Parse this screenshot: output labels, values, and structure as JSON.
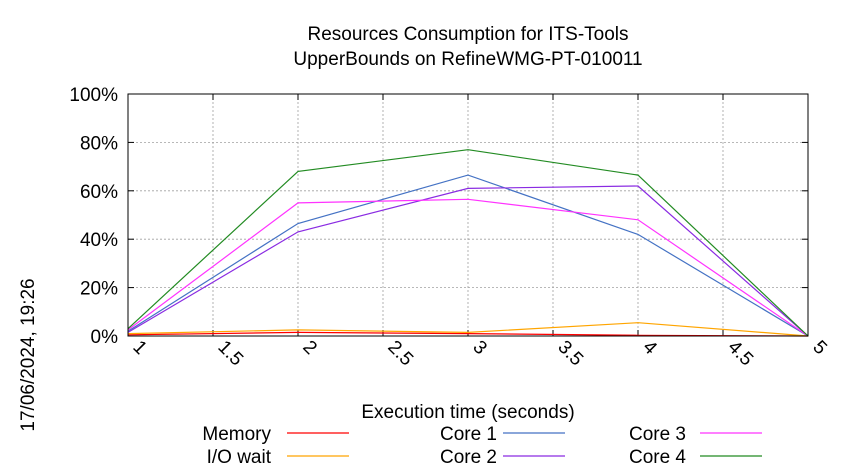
{
  "chart_data": {
    "type": "line",
    "title": [
      "Resources Consumption for ITS-Tools",
      "UpperBounds on RefineWMG-PT-010011"
    ],
    "xlabel": "Execution time (seconds)",
    "ylabel": "",
    "timestamp": "17/06/2024, 19:26",
    "xlim": [
      1,
      5
    ],
    "ylim": [
      0,
      100
    ],
    "xticks": [
      "1",
      "1.5",
      "2",
      "2.5",
      "3",
      "3.5",
      "4",
      "4.5",
      "5"
    ],
    "yticks": [
      "0%",
      "20%",
      "40%",
      "60%",
      "80%",
      "100%"
    ],
    "grid": true,
    "legend_position": "bottom",
    "x": [
      1,
      2,
      3,
      4,
      5
    ],
    "series": [
      {
        "name": "Memory",
        "color": "#ff0000",
        "values": [
          0.5,
          1.5,
          1.0,
          0.3,
          0
        ]
      },
      {
        "name": "I/O wait",
        "color": "#ffa500",
        "values": [
          1,
          2.5,
          1.5,
          5.5,
          0
        ]
      },
      {
        "name": "Core 1",
        "color": "#4472c4",
        "values": [
          2,
          46.5,
          66.5,
          42,
          0
        ]
      },
      {
        "name": "Core 2",
        "color": "#8a2be2",
        "values": [
          1.5,
          43,
          61,
          62,
          0
        ]
      },
      {
        "name": "Core 3",
        "color": "#ff33ff",
        "values": [
          2.5,
          55,
          56.5,
          48,
          0
        ]
      },
      {
        "name": "Core 4",
        "color": "#228b22",
        "values": [
          3,
          68,
          77,
          66.5,
          0
        ]
      }
    ]
  }
}
